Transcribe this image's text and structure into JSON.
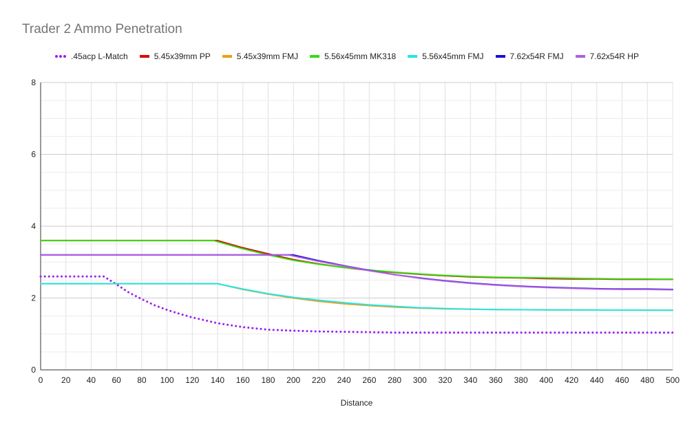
{
  "chart_data": {
    "type": "line",
    "title": "Trader 2 Ammo Penetration",
    "xlabel": "Distance",
    "ylabel": "",
    "xlim": [
      0,
      500
    ],
    "ylim": [
      0,
      8
    ],
    "x_ticks": [
      0,
      20,
      40,
      60,
      80,
      100,
      120,
      140,
      160,
      180,
      200,
      220,
      240,
      260,
      280,
      300,
      320,
      340,
      360,
      380,
      400,
      420,
      440,
      460,
      480,
      500
    ],
    "y_ticks": [
      0,
      2,
      4,
      6,
      8
    ],
    "grid": true,
    "legend_position": "top",
    "series": [
      {
        "name": ".45acp L-Match",
        "color": "#9b1ff0",
        "style": "dotted",
        "points": [
          [
            0,
            2.6
          ],
          [
            50,
            2.6
          ],
          [
            60,
            2.38
          ],
          [
            70,
            2.15
          ],
          [
            80,
            1.97
          ],
          [
            90,
            1.8
          ],
          [
            100,
            1.67
          ],
          [
            110,
            1.56
          ],
          [
            120,
            1.46
          ],
          [
            130,
            1.38
          ],
          [
            140,
            1.3
          ],
          [
            160,
            1.19
          ],
          [
            180,
            1.12
          ],
          [
            200,
            1.09
          ],
          [
            220,
            1.07
          ],
          [
            260,
            1.05
          ],
          [
            280,
            1.04
          ],
          [
            500,
            1.04
          ]
        ]
      },
      {
        "name": "5.45x39mm PP",
        "color": "#e00000",
        "style": "solid",
        "points": [
          [
            0,
            3.6
          ],
          [
            140,
            3.6
          ],
          [
            160,
            3.4
          ],
          [
            180,
            3.23
          ],
          [
            200,
            3.07
          ],
          [
            220,
            2.95
          ],
          [
            240,
            2.85
          ],
          [
            260,
            2.77
          ],
          [
            280,
            2.71
          ],
          [
            300,
            2.66
          ],
          [
            320,
            2.62
          ],
          [
            340,
            2.59
          ],
          [
            360,
            2.57
          ],
          [
            380,
            2.56
          ],
          [
            400,
            2.54
          ],
          [
            420,
            2.53
          ],
          [
            440,
            2.53
          ],
          [
            460,
            2.52
          ],
          [
            480,
            2.52
          ],
          [
            500,
            2.52
          ]
        ]
      },
      {
        "name": "5.45x39mm FMJ",
        "color": "#f39c12",
        "style": "solid",
        "points": [
          [
            0,
            2.4
          ],
          [
            140,
            2.4
          ],
          [
            160,
            2.24
          ],
          [
            180,
            2.11
          ],
          [
            200,
            2.0
          ],
          [
            220,
            1.91
          ],
          [
            240,
            1.84
          ],
          [
            260,
            1.79
          ],
          [
            280,
            1.75
          ],
          [
            300,
            1.72
          ],
          [
            320,
            1.7
          ],
          [
            340,
            1.69
          ],
          [
            360,
            1.68
          ],
          [
            400,
            1.67
          ],
          [
            500,
            1.66
          ]
        ]
      },
      {
        "name": "5.56x45mm MK318",
        "color": "#33dd11",
        "style": "solid",
        "points": [
          [
            0,
            3.6
          ],
          [
            137,
            3.6
          ],
          [
            160,
            3.37
          ],
          [
            180,
            3.2
          ],
          [
            200,
            3.05
          ],
          [
            220,
            2.94
          ],
          [
            240,
            2.85
          ],
          [
            260,
            2.78
          ],
          [
            280,
            2.72
          ],
          [
            300,
            2.67
          ],
          [
            320,
            2.63
          ],
          [
            340,
            2.6
          ],
          [
            360,
            2.58
          ],
          [
            380,
            2.57
          ],
          [
            400,
            2.56
          ],
          [
            420,
            2.55
          ],
          [
            440,
            2.54
          ],
          [
            460,
            2.53
          ],
          [
            480,
            2.53
          ],
          [
            500,
            2.52
          ]
        ]
      },
      {
        "name": "5.56x45mm FMJ",
        "color": "#22e6e6",
        "style": "solid",
        "points": [
          [
            0,
            2.4
          ],
          [
            140,
            2.4
          ],
          [
            160,
            2.25
          ],
          [
            180,
            2.12
          ],
          [
            200,
            2.02
          ],
          [
            220,
            1.94
          ],
          [
            240,
            1.87
          ],
          [
            260,
            1.81
          ],
          [
            280,
            1.77
          ],
          [
            300,
            1.73
          ],
          [
            320,
            1.71
          ],
          [
            340,
            1.69
          ],
          [
            360,
            1.68
          ],
          [
            400,
            1.67
          ],
          [
            500,
            1.66
          ]
        ]
      },
      {
        "name": "7.62x54R FMJ",
        "color": "#1a10d8",
        "style": "solid",
        "points": [
          [
            0,
            3.2
          ],
          [
            200,
            3.2
          ],
          [
            220,
            3.04
          ],
          [
            240,
            2.9
          ],
          [
            260,
            2.77
          ],
          [
            280,
            2.65
          ],
          [
            300,
            2.56
          ],
          [
            320,
            2.48
          ],
          [
            340,
            2.42
          ],
          [
            360,
            2.37
          ],
          [
            380,
            2.33
          ],
          [
            400,
            2.3
          ],
          [
            420,
            2.28
          ],
          [
            440,
            2.26
          ],
          [
            460,
            2.25
          ],
          [
            480,
            2.25
          ],
          [
            500,
            2.24
          ]
        ]
      },
      {
        "name": "7.62x54R HP",
        "color": "#b25de0",
        "style": "solid",
        "points": [
          [
            0,
            3.2
          ],
          [
            196,
            3.2
          ],
          [
            220,
            3.02
          ],
          [
            240,
            2.89
          ],
          [
            260,
            2.76
          ],
          [
            280,
            2.65
          ],
          [
            300,
            2.55
          ],
          [
            320,
            2.47
          ],
          [
            340,
            2.41
          ],
          [
            360,
            2.36
          ],
          [
            380,
            2.32
          ],
          [
            400,
            2.29
          ],
          [
            420,
            2.27
          ],
          [
            440,
            2.25
          ],
          [
            460,
            2.24
          ],
          [
            480,
            2.24
          ],
          [
            500,
            2.23
          ]
        ]
      }
    ]
  }
}
